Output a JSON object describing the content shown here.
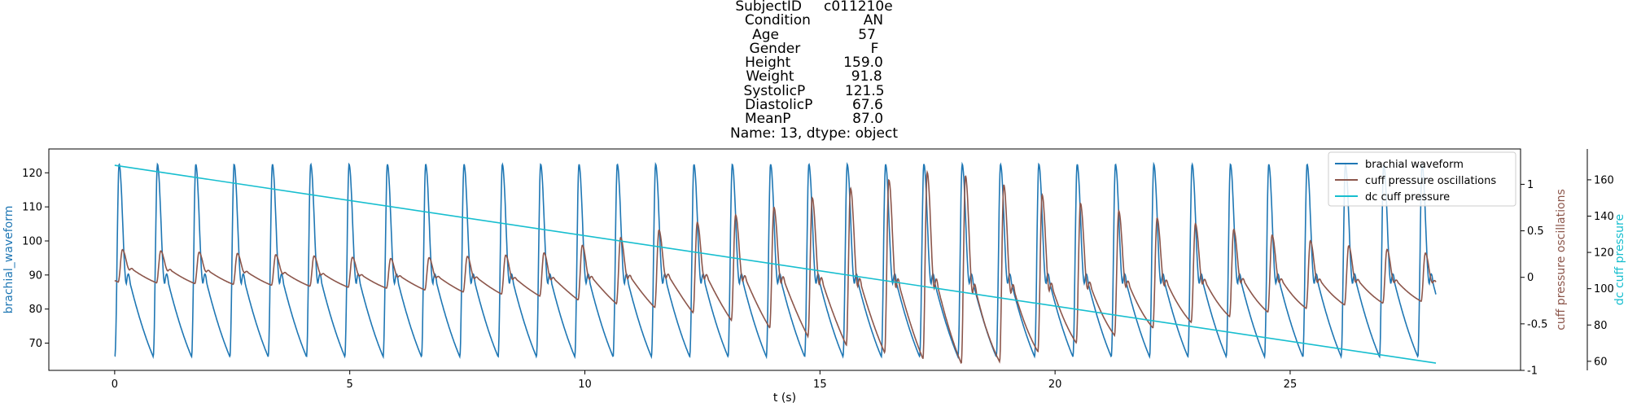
{
  "chart_data": {
    "type": "line",
    "title_lines": [
      "SubjectID     c011210e",
      "Condition            AN",
      "Age                  57",
      "Gender                F",
      "Height            159.0",
      "Weight             91.8",
      "SystolicP         121.5",
      "DiastolicP         67.6",
      "MeanP              87.0",
      "Name: 13, dtype: object"
    ],
    "xlabel": "t (s)",
    "xlim": [
      -1.4,
      29.9
    ],
    "xticks": [
      0,
      5,
      10,
      15,
      20,
      25
    ],
    "axes": {
      "left": {
        "label": "brachial_waveform",
        "color": "#1f77b4",
        "ylim": [
          62,
          127
        ],
        "ticks": [
          70,
          80,
          90,
          100,
          110,
          120
        ]
      },
      "right1": {
        "label": "cuff pressure oscillations",
        "color": "#8c564b",
        "ylim": [
          -1.0,
          1.38
        ],
        "ticks": [
          -1.0,
          -0.5,
          0.0,
          0.5,
          1.0
        ]
      },
      "right2": {
        "label": "dc cuff pressure",
        "color": "#17becf",
        "ylim": [
          55,
          177
        ],
        "ticks": [
          60,
          80,
          100,
          120,
          140,
          160
        ]
      }
    },
    "legend": {
      "placement": "top-right",
      "entries": [
        "brachial waveform",
        "cuff pressure oscillations",
        "dc cuff pressure"
      ]
    },
    "series": [
      {
        "name": "brachial waveform",
        "axis": "left",
        "color": "#1f77b4",
        "beat_period_s": 0.815,
        "t_start": 0,
        "t_end": 28.1,
        "peak": 122.5,
        "trough": 66.0,
        "dicrotic_level": 86.0
      },
      {
        "name": "cuff pressure oscillations",
        "axis": "right1",
        "color": "#8c564b",
        "t_start": 0,
        "t_end": 28.1,
        "baseline": -0.05,
        "amplitude_envelope_t": [
          0,
          3,
          6,
          9,
          12,
          14,
          16,
          17.5,
          18.5,
          20,
          22,
          24,
          26,
          28.1
        ],
        "amplitude_envelope_peak": [
          0.3,
          0.25,
          0.2,
          0.25,
          0.55,
          0.75,
          1.0,
          1.15,
          1.05,
          0.85,
          0.65,
          0.5,
          0.35,
          0.25
        ],
        "amplitude_envelope_trough": [
          -0.05,
          -0.08,
          -0.12,
          -0.2,
          -0.35,
          -0.55,
          -0.78,
          -0.9,
          -0.95,
          -0.75,
          -0.55,
          -0.4,
          -0.3,
          -0.25
        ]
      },
      {
        "name": "dc cuff pressure",
        "axis": "right2",
        "color": "#17becf",
        "x": [
          0,
          28.1
        ],
        "y": [
          168,
          59
        ]
      }
    ]
  }
}
